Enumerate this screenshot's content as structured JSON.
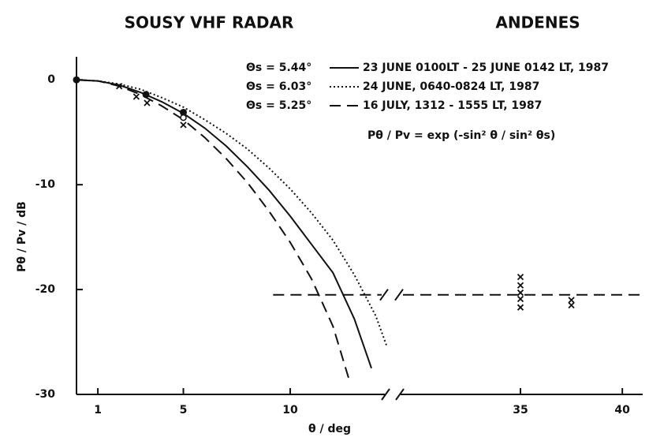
{
  "chart_data": {
    "type": "line",
    "title": "SOUSY VHF RADAR",
    "subtitle": "ANDENES",
    "x_label": "θ / deg",
    "y_label": "Pθ / Pv / dB",
    "formula": "Pθ / Pv = exp (-sin² θ / sin² θs)",
    "xlim": [
      0,
      41
    ],
    "xbreak": [
      14.5,
      29
    ],
    "xticks": [
      1,
      5,
      10,
      35,
      40
    ],
    "ylim": [
      -30,
      2.2
    ],
    "yticks": [
      0,
      -10,
      -20,
      -30
    ],
    "series": [
      {
        "name": "Θs = 5.44°",
        "label": "23 JUNE 0100LT - 25 JUNE 0142 LT, 1987",
        "style": "solid",
        "color": "#111111",
        "x": [
          0,
          1,
          2,
          3,
          4,
          5,
          6,
          7,
          8,
          9,
          10,
          11,
          12,
          13,
          13.8
        ],
        "values": [
          0,
          -0.1,
          -0.5,
          -1.2,
          -2.1,
          -3.2,
          -4.6,
          -6.3,
          -8.3,
          -10.5,
          -13,
          -15.7,
          -18.4,
          -22.8,
          -27.5
        ]
      },
      {
        "name": "Θs = 6.03°",
        "label": "24 JUNE, 0640-0824 LT, 1987",
        "style": "dotted",
        "color": "#111111",
        "x": [
          0,
          1,
          2,
          3,
          4,
          5,
          6,
          7,
          8,
          9,
          10,
          11,
          12,
          13,
          14,
          14.5
        ],
        "values": [
          0,
          -0.1,
          -0.4,
          -0.9,
          -1.7,
          -2.6,
          -3.8,
          -5.1,
          -6.6,
          -8.4,
          -10.4,
          -12.7,
          -15.3,
          -18.6,
          -22.5,
          -25.3
        ]
      },
      {
        "name": "Θs = 5.25°",
        "label": "16 JULY, 1312 - 1555 LT, 1987",
        "style": "dashed",
        "color": "#111111",
        "x": [
          0,
          1,
          2,
          3,
          4,
          5,
          6,
          7,
          8,
          9,
          10,
          11,
          12,
          12.8
        ],
        "values": [
          0,
          -0.1,
          -0.6,
          -1.4,
          -2.5,
          -3.8,
          -5.5,
          -7.5,
          -9.8,
          -12.5,
          -15.5,
          -19,
          -23.5,
          -28.9
        ]
      }
    ],
    "markers": [
      {
        "shape": "dot",
        "x": [
          0,
          3.25,
          5
        ],
        "values": [
          0,
          -1.4,
          -3.1
        ]
      },
      {
        "shape": "circle",
        "x": [
          5
        ],
        "values": [
          -3.6
        ]
      },
      {
        "shape": "cross",
        "x": [
          2,
          2.8,
          3.3,
          5,
          35,
          35,
          35,
          35,
          35,
          37.5,
          37.5
        ],
        "values": [
          -0.6,
          -1.6,
          -2.2,
          -4.3,
          -18.8,
          -19.6,
          -20.3,
          -20.9,
          -21.7,
          -21.0,
          -21.5
        ]
      }
    ],
    "reference_line": {
      "value": -20.5,
      "x": [
        9.2,
        41
      ],
      "style": "dashed"
    }
  }
}
